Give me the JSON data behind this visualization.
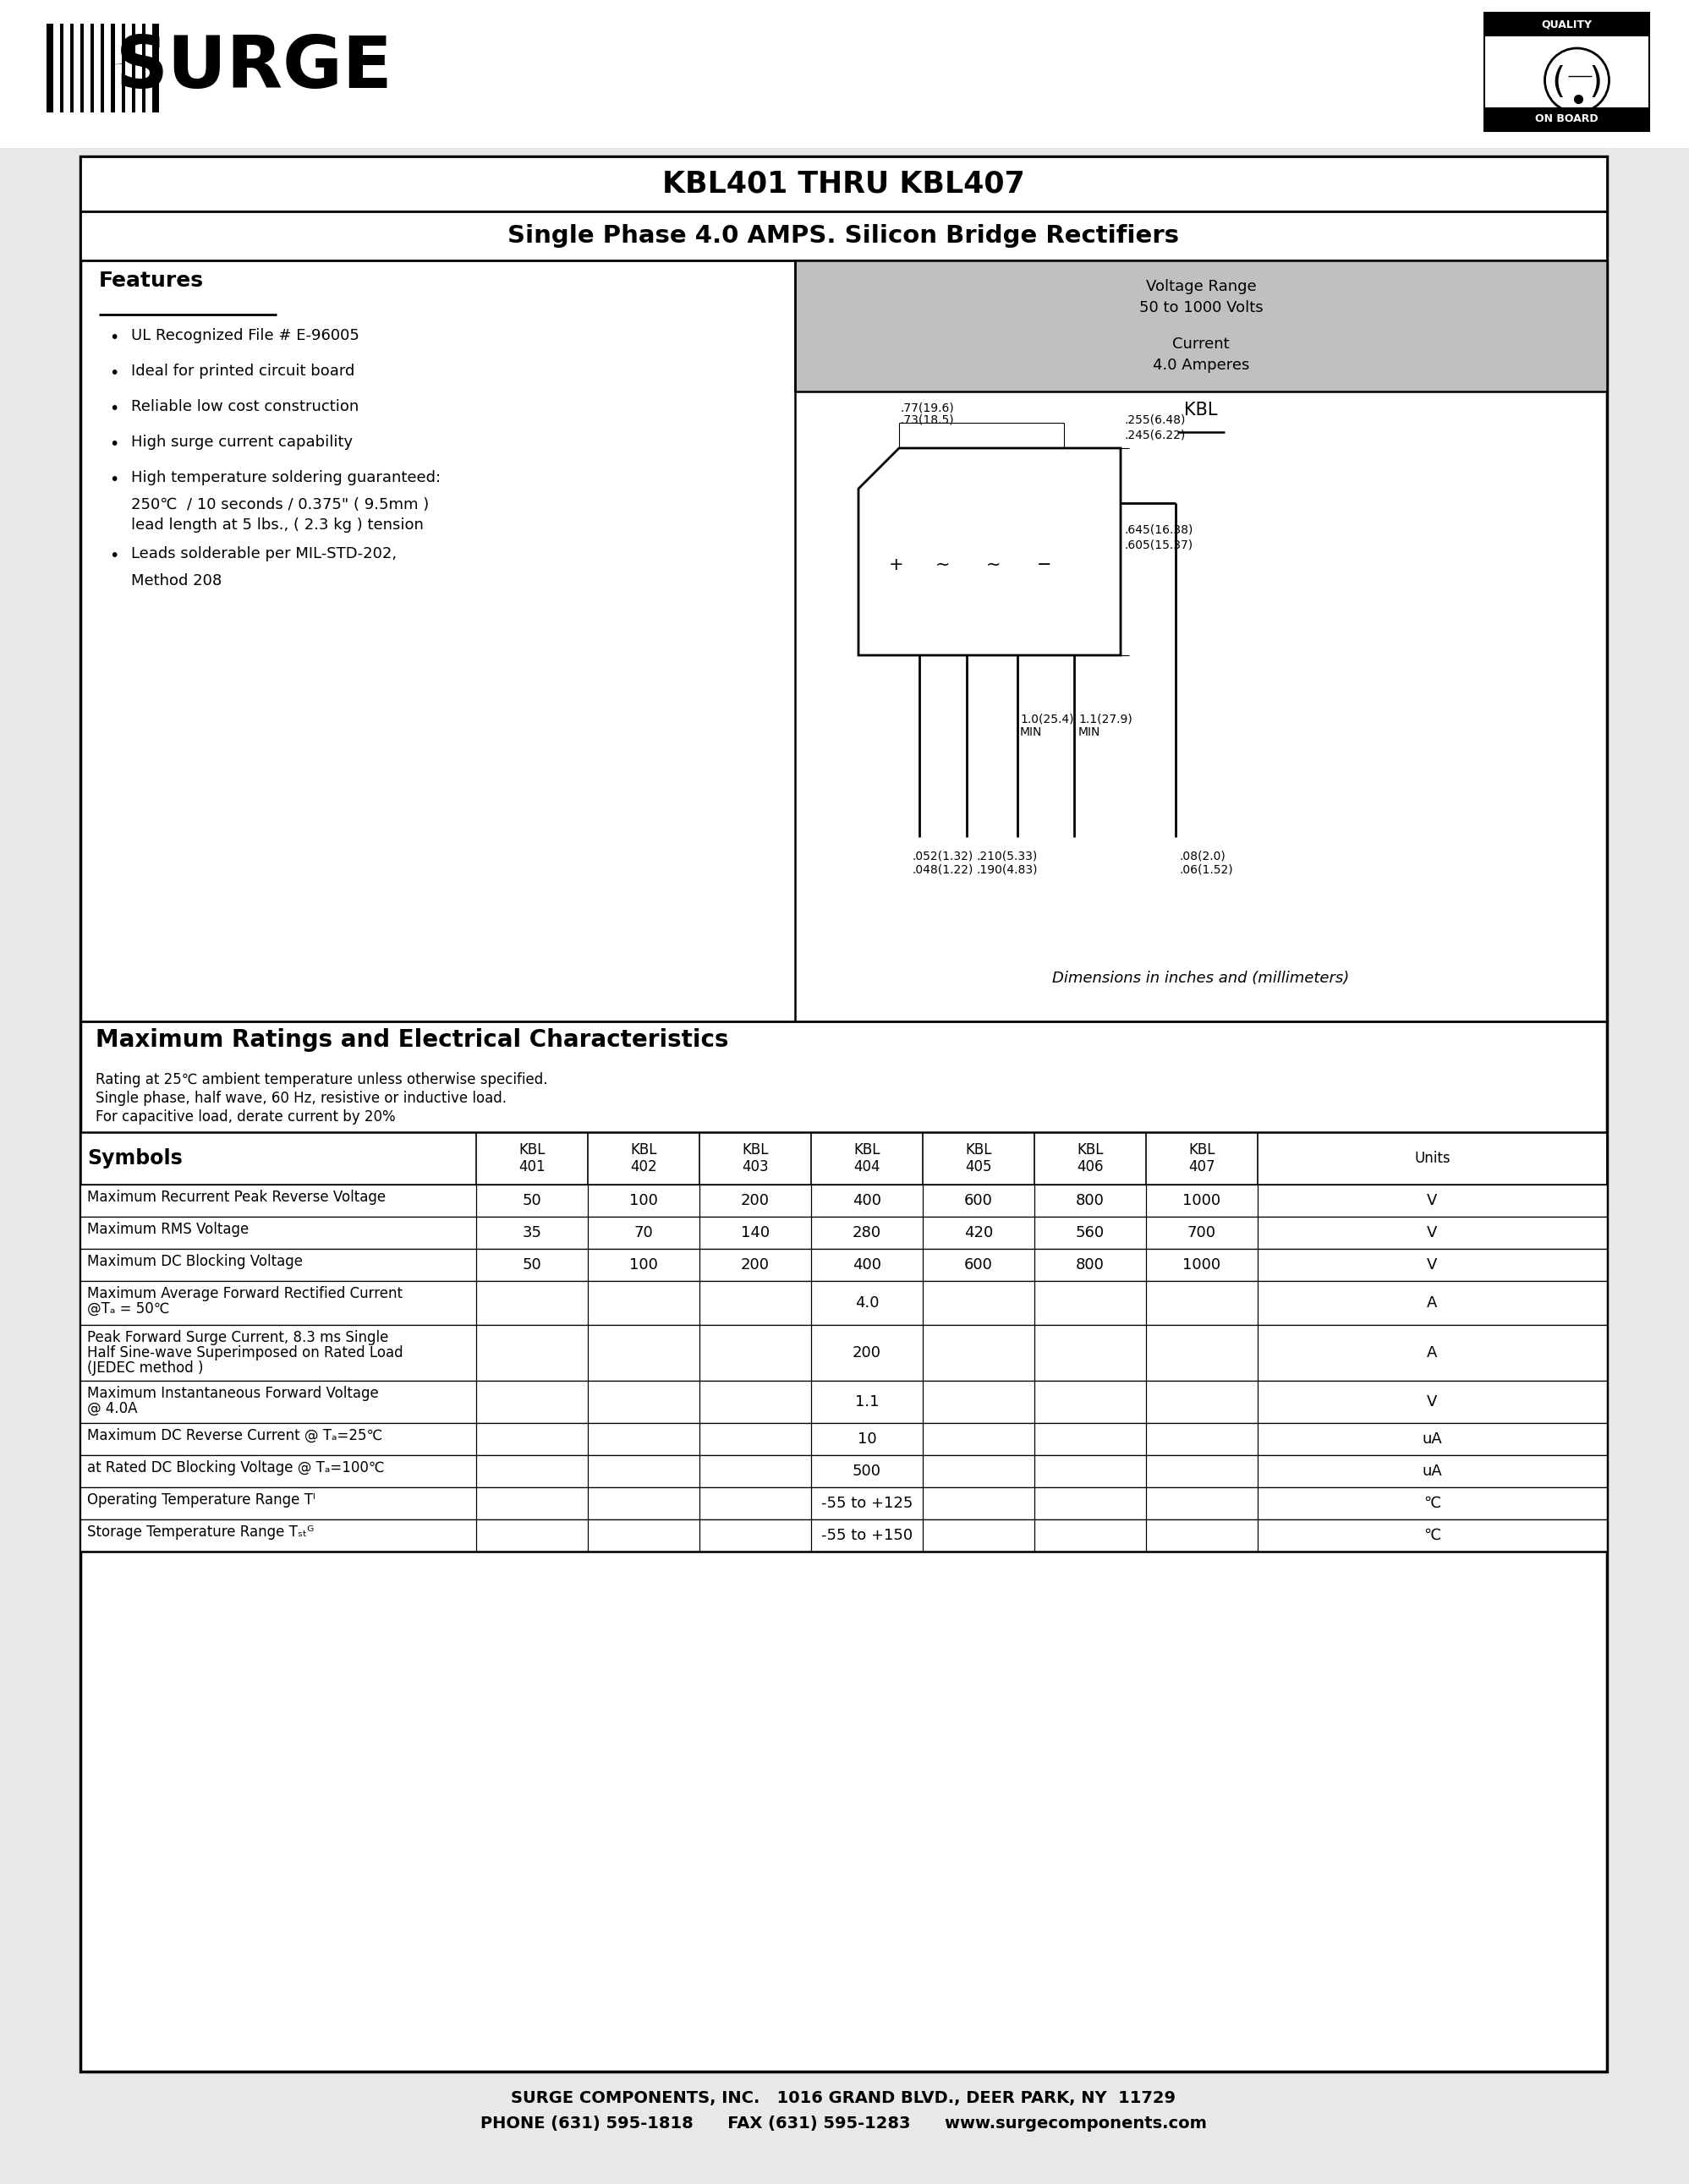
{
  "bg_color": "#e8e8e8",
  "page_bg": "#ffffff",
  "page_title": "KBL401 THRU KBL407",
  "page_subtitle": "Single Phase 4.0 AMPS. Silicon Bridge Rectifiers",
  "voltage_info": [
    "Voltage Range",
    "50 to 1000 Volts",
    "Current",
    "4.0 Amperes"
  ],
  "shaded_color": "#c0c0c0",
  "features_title": "Features",
  "features": [
    [
      "UL Recognized File # E-96005"
    ],
    [
      "Ideal for printed circuit board"
    ],
    [
      "Reliable low cost construction"
    ],
    [
      "High surge current capability"
    ],
    [
      "High temperature soldering guaranteed:",
      "250℃  / 10 seconds / 0.375\" ( 9.5mm )",
      "lead length at 5 lbs., ( 2.3 kg ) tension"
    ],
    [
      "Leads solderable per MIL-STD-202,",
      "Method 208"
    ]
  ],
  "kbl_label": "KBL",
  "dim_note": "Dimensions in inches and (millimeters)",
  "section_title": "Maximum Ratings and Electrical Characteristics",
  "rating_notes": [
    "Rating at 25℃ ambient temperature unless otherwise specified.",
    "Single phase, half wave, 60 Hz, resistive or inductive load.",
    "For capacitive load, derate current by 20%"
  ],
  "col_headers": [
    "Symbols",
    "KBL\n401",
    "KBL\n402",
    "KBL\n403",
    "KBL\n404",
    "KBL\n405",
    "KBL\n406",
    "KBL\n407",
    "Units"
  ],
  "table_rows": [
    {
      "sym": "Maximum Recurrent Peak Reverse Voltage",
      "vals": [
        "50",
        "100",
        "200",
        "400",
        "600",
        "800",
        "1000"
      ],
      "unit": "V",
      "merged": false,
      "rh": 38
    },
    {
      "sym": "Maximum RMS Voltage",
      "vals": [
        "35",
        "70",
        "140",
        "280",
        "420",
        "560",
        "700"
      ],
      "unit": "V",
      "merged": false,
      "rh": 38
    },
    {
      "sym": "Maximum DC Blocking Voltage",
      "vals": [
        "50",
        "100",
        "200",
        "400",
        "600",
        "800",
        "1000"
      ],
      "unit": "V",
      "merged": false,
      "rh": 38
    },
    {
      "sym": "Maximum Average Forward Rectified Current\n@Tₐ = 50℃",
      "vals": [
        "4.0"
      ],
      "unit": "A",
      "merged": true,
      "rh": 52
    },
    {
      "sym": "Peak Forward Surge Current, 8.3 ms Single\nHalf Sine-wave Superimposed on Rated Load\n(JEDEC method )",
      "vals": [
        "200"
      ],
      "unit": "A",
      "merged": true,
      "rh": 66
    },
    {
      "sym": "Maximum Instantaneous Forward Voltage\n@ 4.0A",
      "vals": [
        "1.1"
      ],
      "unit": "V",
      "merged": true,
      "rh": 50
    },
    {
      "sym": "Maximum DC Reverse Current @ Tₐ=25℃",
      "vals": [
        "10"
      ],
      "unit": "uA",
      "merged": true,
      "rh": 38
    },
    {
      "sym": "at Rated DC Blocking Voltage @ Tₐ=100℃",
      "vals": [
        "500"
      ],
      "unit": "uA",
      "merged": true,
      "rh": 38
    },
    {
      "sym": "Operating Temperature Range Tᴵ",
      "vals": [
        "-55 to +125"
      ],
      "unit": "℃",
      "merged": true,
      "rh": 38
    },
    {
      "sym": "Storage Temperature Range Tₛₜᴳ",
      "vals": [
        "-55 to +150"
      ],
      "unit": "℃",
      "merged": true,
      "rh": 38
    }
  ],
  "footer_line1": "SURGE COMPONENTS, INC.   1016 GRAND BLVD., DEER PARK, NY  11729",
  "footer_line2": "PHONE (631) 595-1818      FAX (631) 595-1283      www.surgecomponents.com"
}
